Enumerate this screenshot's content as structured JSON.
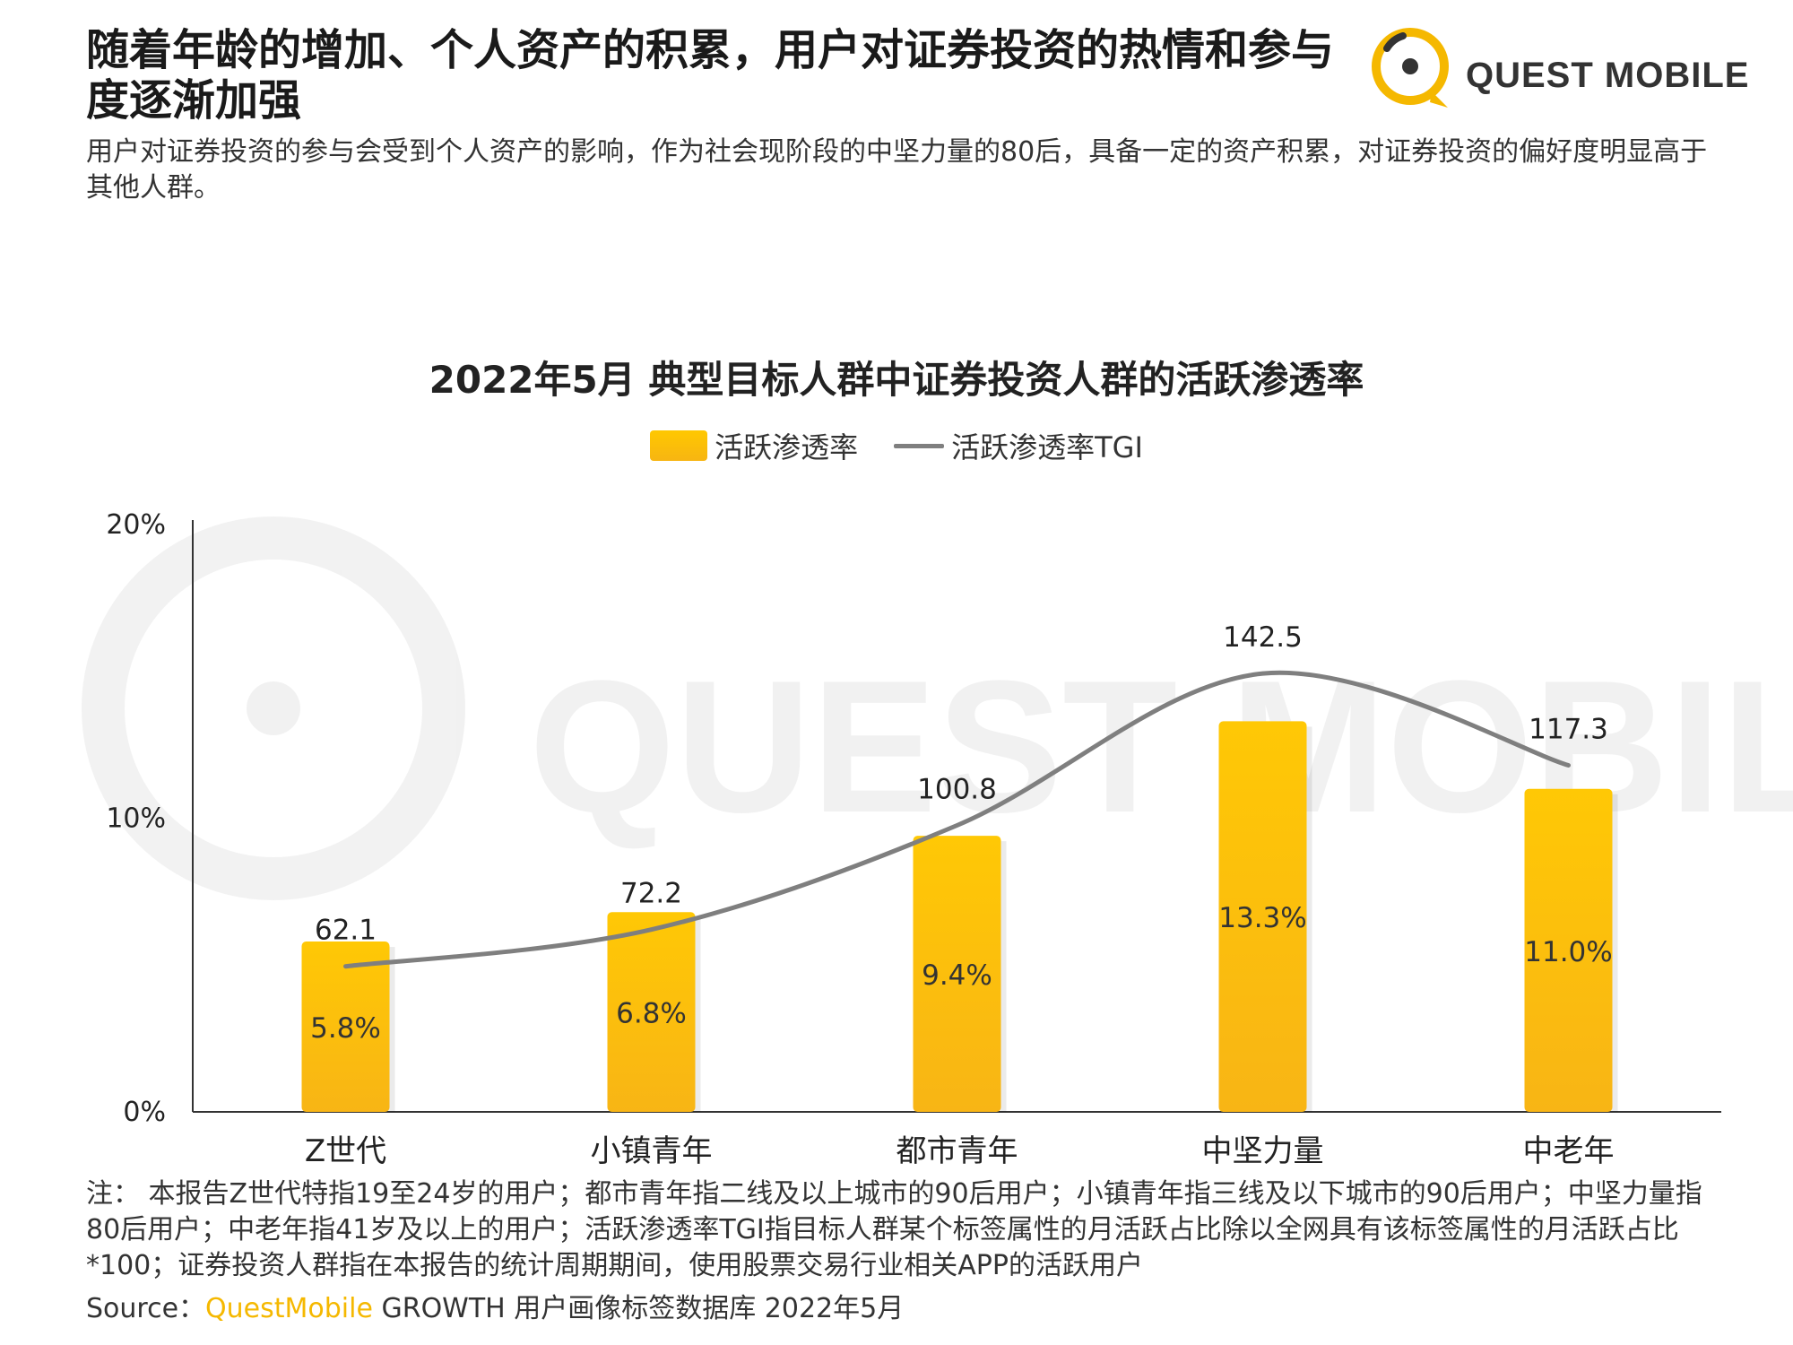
{
  "header": {
    "headline": "随着年龄的增加、个人资产的积累，用户对证券投资的热情和参与度逐渐加强",
    "subheadline": "用户对证券投资的参与会受到个人资产的影响，作为社会现阶段的中坚力量的80后，具备一定的资产积累，对证券投资的偏好度明显高于其他人群。",
    "logo_text": "QUEST MOBILE"
  },
  "watermark_text": "QUEST MOBILE",
  "colors": {
    "bar": "#F9BE0A",
    "line": "#7f7f7f",
    "brand": "#F5B800"
  },
  "chart_data": {
    "type": "bar",
    "title": "2022年5月 典型目标人群中证券投资人群的活跃渗透率",
    "categories": [
      "Z世代",
      "小镇青年",
      "都市青年",
      "中坚力量",
      "中老年"
    ],
    "series": [
      {
        "name": "活跃渗透率",
        "type": "bar",
        "values": [
          5.8,
          6.8,
          9.4,
          13.3,
          11.0
        ],
        "labels": [
          "5.8%",
          "6.8%",
          "9.4%",
          "13.3%",
          "11.0%"
        ]
      },
      {
        "name": "活跃渗透率TGI",
        "type": "line",
        "values": [
          62.1,
          72.2,
          100.8,
          142.5,
          117.3
        ],
        "labels": [
          "62.1",
          "72.2",
          "100.8",
          "142.5",
          "117.3"
        ]
      }
    ],
    "yticks": [
      "0%",
      "10%",
      "20%"
    ],
    "ylim": [
      0,
      20
    ],
    "grid": false,
    "legend_position": "top"
  },
  "footer": {
    "notes": "注： 本报告Z世代特指19至24岁的用户；都市青年指二线及以上城市的90后用户；小镇青年指三线及以下城市的90后用户；中坚力量指80后用户；中老年指41岁及以上的用户；活跃渗透率TGI指目标人群某个标签属性的月活跃占比除以全网具有该标签属性的月活跃占比*100；证券投资人群指在本报告的统计周期期间，使用股票交易行业相关APP的活跃用户",
    "source_prefix": "Source：",
    "source_brand": "QuestMobile",
    "source_suffix": " GROWTH 用户画像标签数据库 2022年5月"
  }
}
